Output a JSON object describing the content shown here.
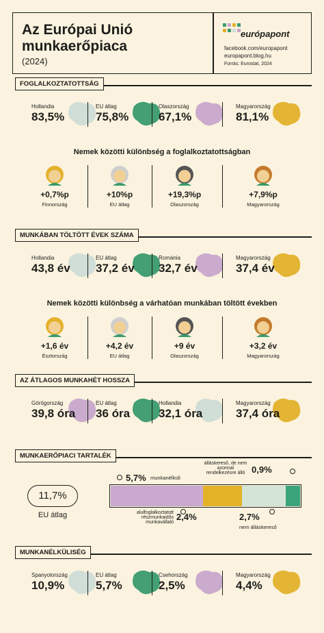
{
  "header": {
    "title": "Az Európai Unió munkaerőpiaca",
    "year": "(2024)",
    "brand": "európapont",
    "links": [
      "facebook.com/europapont",
      "europapont.blog.hu"
    ],
    "source": "Forrás: Eurostat, 2024"
  },
  "sections": [
    {
      "title": "FOGLALKOZTATOTTSÁG",
      "stats": [
        {
          "label": "Hollandia",
          "value": "83,5%",
          "color": "#cfdcd6"
        },
        {
          "label": "EU átlag",
          "value": "75,8%",
          "color": "#3a9a6e"
        },
        {
          "label": "Olaszország",
          "value": "67,1%",
          "color": "#c8a6cb"
        },
        {
          "label": "Magyarország",
          "value": "81,1%",
          "color": "#e3b12a"
        }
      ],
      "gap_title": "Nemek közötti különbség a foglalkoztatottságban",
      "gaps": [
        {
          "value": "+0,7%p",
          "label": "Finnország"
        },
        {
          "value": "+10%p",
          "label": "EU átlag"
        },
        {
          "value": "+19,3%p",
          "label": "Olaszország"
        },
        {
          "value": "+7,9%p",
          "label": "Magyarország"
        }
      ]
    },
    {
      "title": "MUNKÁBAN TÖLTÖTT ÉVEK SZÁMA",
      "stats": [
        {
          "label": "Hollandia",
          "value": "43,8 év",
          "color": "#cfdcd6"
        },
        {
          "label": "EU átlag",
          "value": "37,2 év",
          "color": "#3a9a6e"
        },
        {
          "label": "Románia",
          "value": "32,7 év",
          "color": "#c8a6cb"
        },
        {
          "label": "Magyarország",
          "value": "37,4 év",
          "color": "#e3b12a"
        }
      ],
      "gap_title": "Nemek közötti különbség a várhatóan munkában töltött években",
      "gaps": [
        {
          "value": "+1,6 év",
          "label": "Észtország"
        },
        {
          "value": "+4,2 év",
          "label": "EU átlag"
        },
        {
          "value": "+9 év",
          "label": "Olaszország"
        },
        {
          "value": "+3,2 év",
          "label": "Magyarország"
        }
      ]
    },
    {
      "title": "AZ ÁTLAGOS MUNKAHÉT HOSSZA",
      "stats": [
        {
          "label": "Görögország",
          "value": "39,8 óra",
          "color": "#c8a6cb"
        },
        {
          "label": "EU átlag",
          "value": "36 óra",
          "color": "#3a9a6e"
        },
        {
          "label": "Hollandia",
          "value": "32,1 óra",
          "color": "#cfdcd6"
        },
        {
          "label": "Magyarország",
          "value": "37,4 óra",
          "color": "#e3b12a"
        }
      ]
    },
    {
      "title": "MUNKAERŐPIACI TARTALÉK",
      "total": {
        "value": "11,7%",
        "label": "EU átlag"
      },
      "segments": [
        {
          "value": 5.7,
          "value_label": "5,7%",
          "label": "munkanélküli",
          "color": "#c9a9cf"
        },
        {
          "value": 2.4,
          "value_label": "2,4%",
          "label": "alulfoglalkoztatott részmunkaidős munkavállaló",
          "color": "#e3b227"
        },
        {
          "value": 2.7,
          "value_label": "2,7%",
          "label": "nem álláskereső",
          "color": "#d4e4d6"
        },
        {
          "value": 0.9,
          "value_label": "0,9%",
          "label": "álláskereső, de nem azonnal rendelkezésre álló",
          "color": "#3aa57a"
        }
      ]
    },
    {
      "title": "MUNKANÉLKÜLISÉG",
      "stats": [
        {
          "label": "Spanyolország",
          "value": "10,9%",
          "color": "#cfdcd6"
        },
        {
          "label": "EU átlag",
          "value": "5,7%",
          "color": "#3a9a6e"
        },
        {
          "label": "Csehország",
          "value": "2,5%",
          "color": "#c8a6cb"
        },
        {
          "label": "Magyarország",
          "value": "4,4%",
          "color": "#e3b12a"
        }
      ]
    }
  ]
}
